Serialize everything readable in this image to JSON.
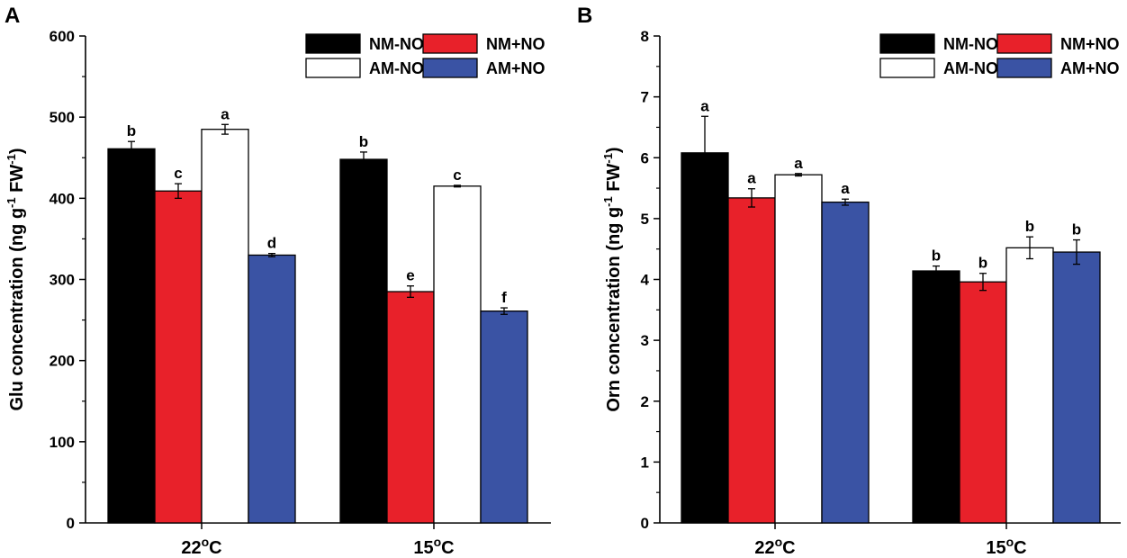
{
  "chart_data": [
    {
      "panel": "A",
      "type": "bar",
      "ylabel": {
        "main": "Glu concentration (ng g",
        "sup1": "-1",
        "mid": " FW",
        "sup2": "-1",
        "end": ")"
      },
      "ylim": [
        0,
        600
      ],
      "yticks": [
        0,
        100,
        200,
        300,
        400,
        500,
        600
      ],
      "categories": [
        {
          "base": "22",
          "sup": "o",
          "unit": "C"
        },
        {
          "base": "15",
          "sup": "o",
          "unit": "C"
        }
      ],
      "series": [
        {
          "name": "NM-NO",
          "color": "#000000",
          "values": [
            461,
            448
          ],
          "errors": [
            9,
            9
          ],
          "letters": [
            "b",
            "b"
          ]
        },
        {
          "name": "NM+NO",
          "color": "#e8212a",
          "values": [
            409,
            285
          ],
          "errors": [
            9,
            7
          ],
          "letters": [
            "c",
            "e"
          ]
        },
        {
          "name": "AM-NO",
          "color": "#ffffff",
          "values": [
            485,
            415
          ],
          "errors": [
            6,
            1
          ],
          "letters": [
            "a",
            "c"
          ]
        },
        {
          "name": "AM+NO",
          "color": "#3a53a4",
          "values": [
            330,
            261
          ],
          "errors": [
            2,
            4
          ],
          "letters": [
            "d",
            "f"
          ]
        }
      ]
    },
    {
      "panel": "B",
      "type": "bar",
      "ylabel": {
        "main": "Orn concentration (ng g",
        "sup1": "-1",
        "mid": " FW",
        "sup2": "-1",
        "end": ")"
      },
      "ylim": [
        0,
        8
      ],
      "yticks": [
        0,
        1,
        2,
        3,
        4,
        5,
        6,
        7,
        8
      ],
      "categories": [
        {
          "base": "22",
          "sup": "o",
          "unit": "C"
        },
        {
          "base": "15",
          "sup": "o",
          "unit": "C"
        }
      ],
      "series": [
        {
          "name": "NM-NO",
          "color": "#000000",
          "values": [
            6.08,
            4.14
          ],
          "errors": [
            0.6,
            0.08
          ],
          "letters": [
            "a",
            "b"
          ]
        },
        {
          "name": "NM+NO",
          "color": "#e8212a",
          "values": [
            5.34,
            3.96
          ],
          "errors": [
            0.15,
            0.14
          ],
          "letters": [
            "a",
            "b"
          ]
        },
        {
          "name": "AM-NO",
          "color": "#ffffff",
          "values": [
            5.72,
            4.52
          ],
          "errors": [
            0.02,
            0.18
          ],
          "letters": [
            "a",
            "b"
          ]
        },
        {
          "name": "AM+NO",
          "color": "#3a53a4",
          "values": [
            5.27,
            4.45
          ],
          "errors": [
            0.05,
            0.2
          ],
          "letters": [
            "a",
            "b"
          ]
        }
      ]
    }
  ]
}
